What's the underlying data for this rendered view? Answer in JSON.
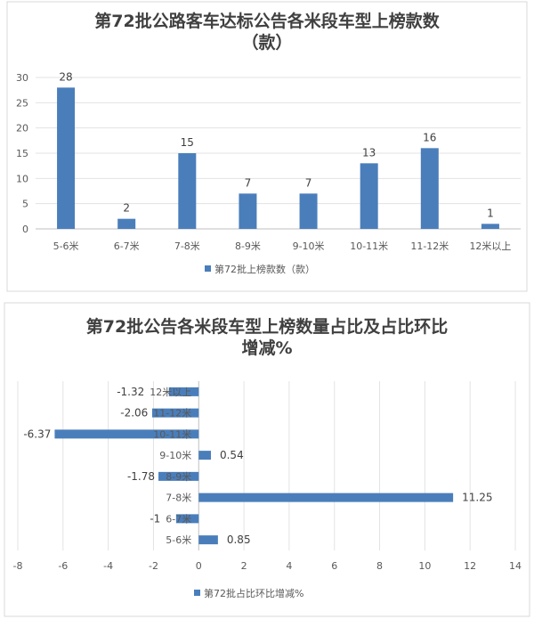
{
  "chart_data": [
    {
      "type": "bar",
      "orientation": "vertical",
      "title_lines": [
        "第72批公路客车达标公告各米段车型上榜款数",
        "（款）"
      ],
      "categories": [
        "5-6米",
        "6-7米",
        "7-8米",
        "8-9米",
        "9-10米",
        "10-11米",
        "11-12米",
        "12米以上"
      ],
      "series": [
        {
          "name": "第72批上榜款数（款）",
          "values": [
            28,
            2,
            15,
            7,
            7,
            13,
            16,
            1
          ]
        }
      ],
      "ylim": [
        0,
        30
      ],
      "yticks": [
        0,
        5,
        10,
        15,
        20,
        25,
        30
      ],
      "grid": true,
      "legend": "bottom",
      "color": "#4a7ebb"
    },
    {
      "type": "bar",
      "orientation": "horizontal",
      "title_lines": [
        "第72批公告各米段车型上榜数量占比及占比环比",
        "增减%"
      ],
      "categories": [
        "5-6米",
        "6-7米",
        "7-8米",
        "8-9米",
        "9-10米",
        "10-11米",
        "11-12米",
        "12米以上"
      ],
      "series": [
        {
          "name": "第72批占比环比增减%",
          "values": [
            0.85,
            -1,
            11.25,
            -1.78,
            0.54,
            -6.37,
            -2.06,
            -1.32
          ]
        }
      ],
      "xlim": [
        -8,
        14
      ],
      "xticks": [
        -8,
        -6,
        -4,
        -2,
        0,
        2,
        4,
        6,
        8,
        10,
        12,
        14
      ],
      "grid": true,
      "legend": "bottom",
      "color": "#4a7ebb"
    }
  ]
}
